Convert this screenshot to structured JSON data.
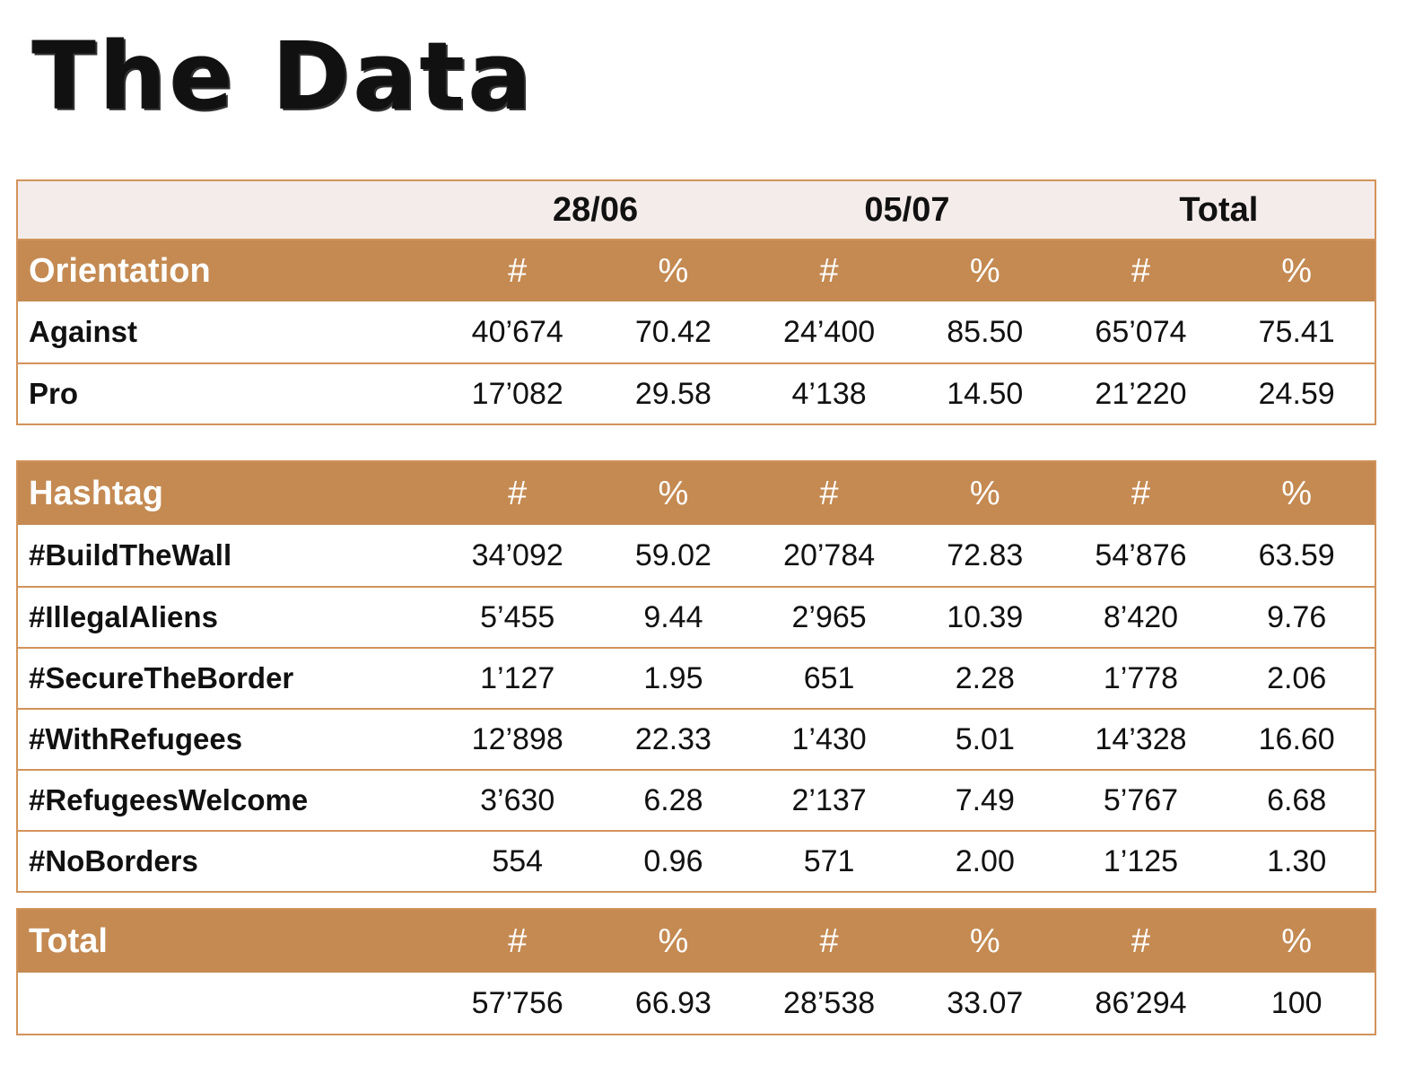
{
  "title": "The Data",
  "dates": [
    "28/06",
    "05/07",
    "Total"
  ],
  "col_labels": [
    "#",
    "%",
    "#",
    "%",
    "#",
    "%"
  ],
  "orientation": {
    "header": "Orientation",
    "rows": [
      {
        "label": "Against",
        "values": [
          "40’674",
          "70.42",
          "24’400",
          "85.50",
          "65’074",
          "75.41"
        ]
      },
      {
        "label": "Pro",
        "values": [
          "17’082",
          "29.58",
          "4’138",
          "14.50",
          "21’220",
          "24.59"
        ]
      }
    ]
  },
  "hashtag": {
    "header": "Hashtag",
    "rows": [
      {
        "label": "#BuildTheWall",
        "values": [
          "34’092",
          "59.02",
          "20’784",
          "72.83",
          "54’876",
          "63.59"
        ]
      },
      {
        "label": "#IllegalAliens",
        "values": [
          "5’455",
          "9.44",
          "2’965",
          "10.39",
          "8’420",
          "9.76"
        ]
      },
      {
        "label": "#SecureTheBorder",
        "values": [
          "1’127",
          "1.95",
          "651",
          "2.28",
          "1’778",
          "2.06"
        ]
      },
      {
        "label": "#WithRefugees",
        "values": [
          "12’898",
          "22.33",
          "1’430",
          "5.01",
          "14’328",
          "16.60"
        ]
      },
      {
        "label": "#RefugeesWelcome",
        "values": [
          "3’630",
          "6.28",
          "2’137",
          "7.49",
          "5’767",
          "6.68"
        ]
      },
      {
        "label": "#NoBorders",
        "values": [
          "554",
          "0.96",
          "571",
          "2.00",
          "1’125",
          "1.30"
        ]
      }
    ]
  },
  "total": {
    "header": "Total",
    "rows": [
      {
        "label": "",
        "values": [
          "57’756",
          "66.93",
          "28’538",
          "33.07",
          "86’294",
          "100"
        ]
      }
    ]
  },
  "colors": {
    "header_bg": "#c48a52",
    "border": "#d2935a",
    "dates_bg": "#f4ecea"
  }
}
